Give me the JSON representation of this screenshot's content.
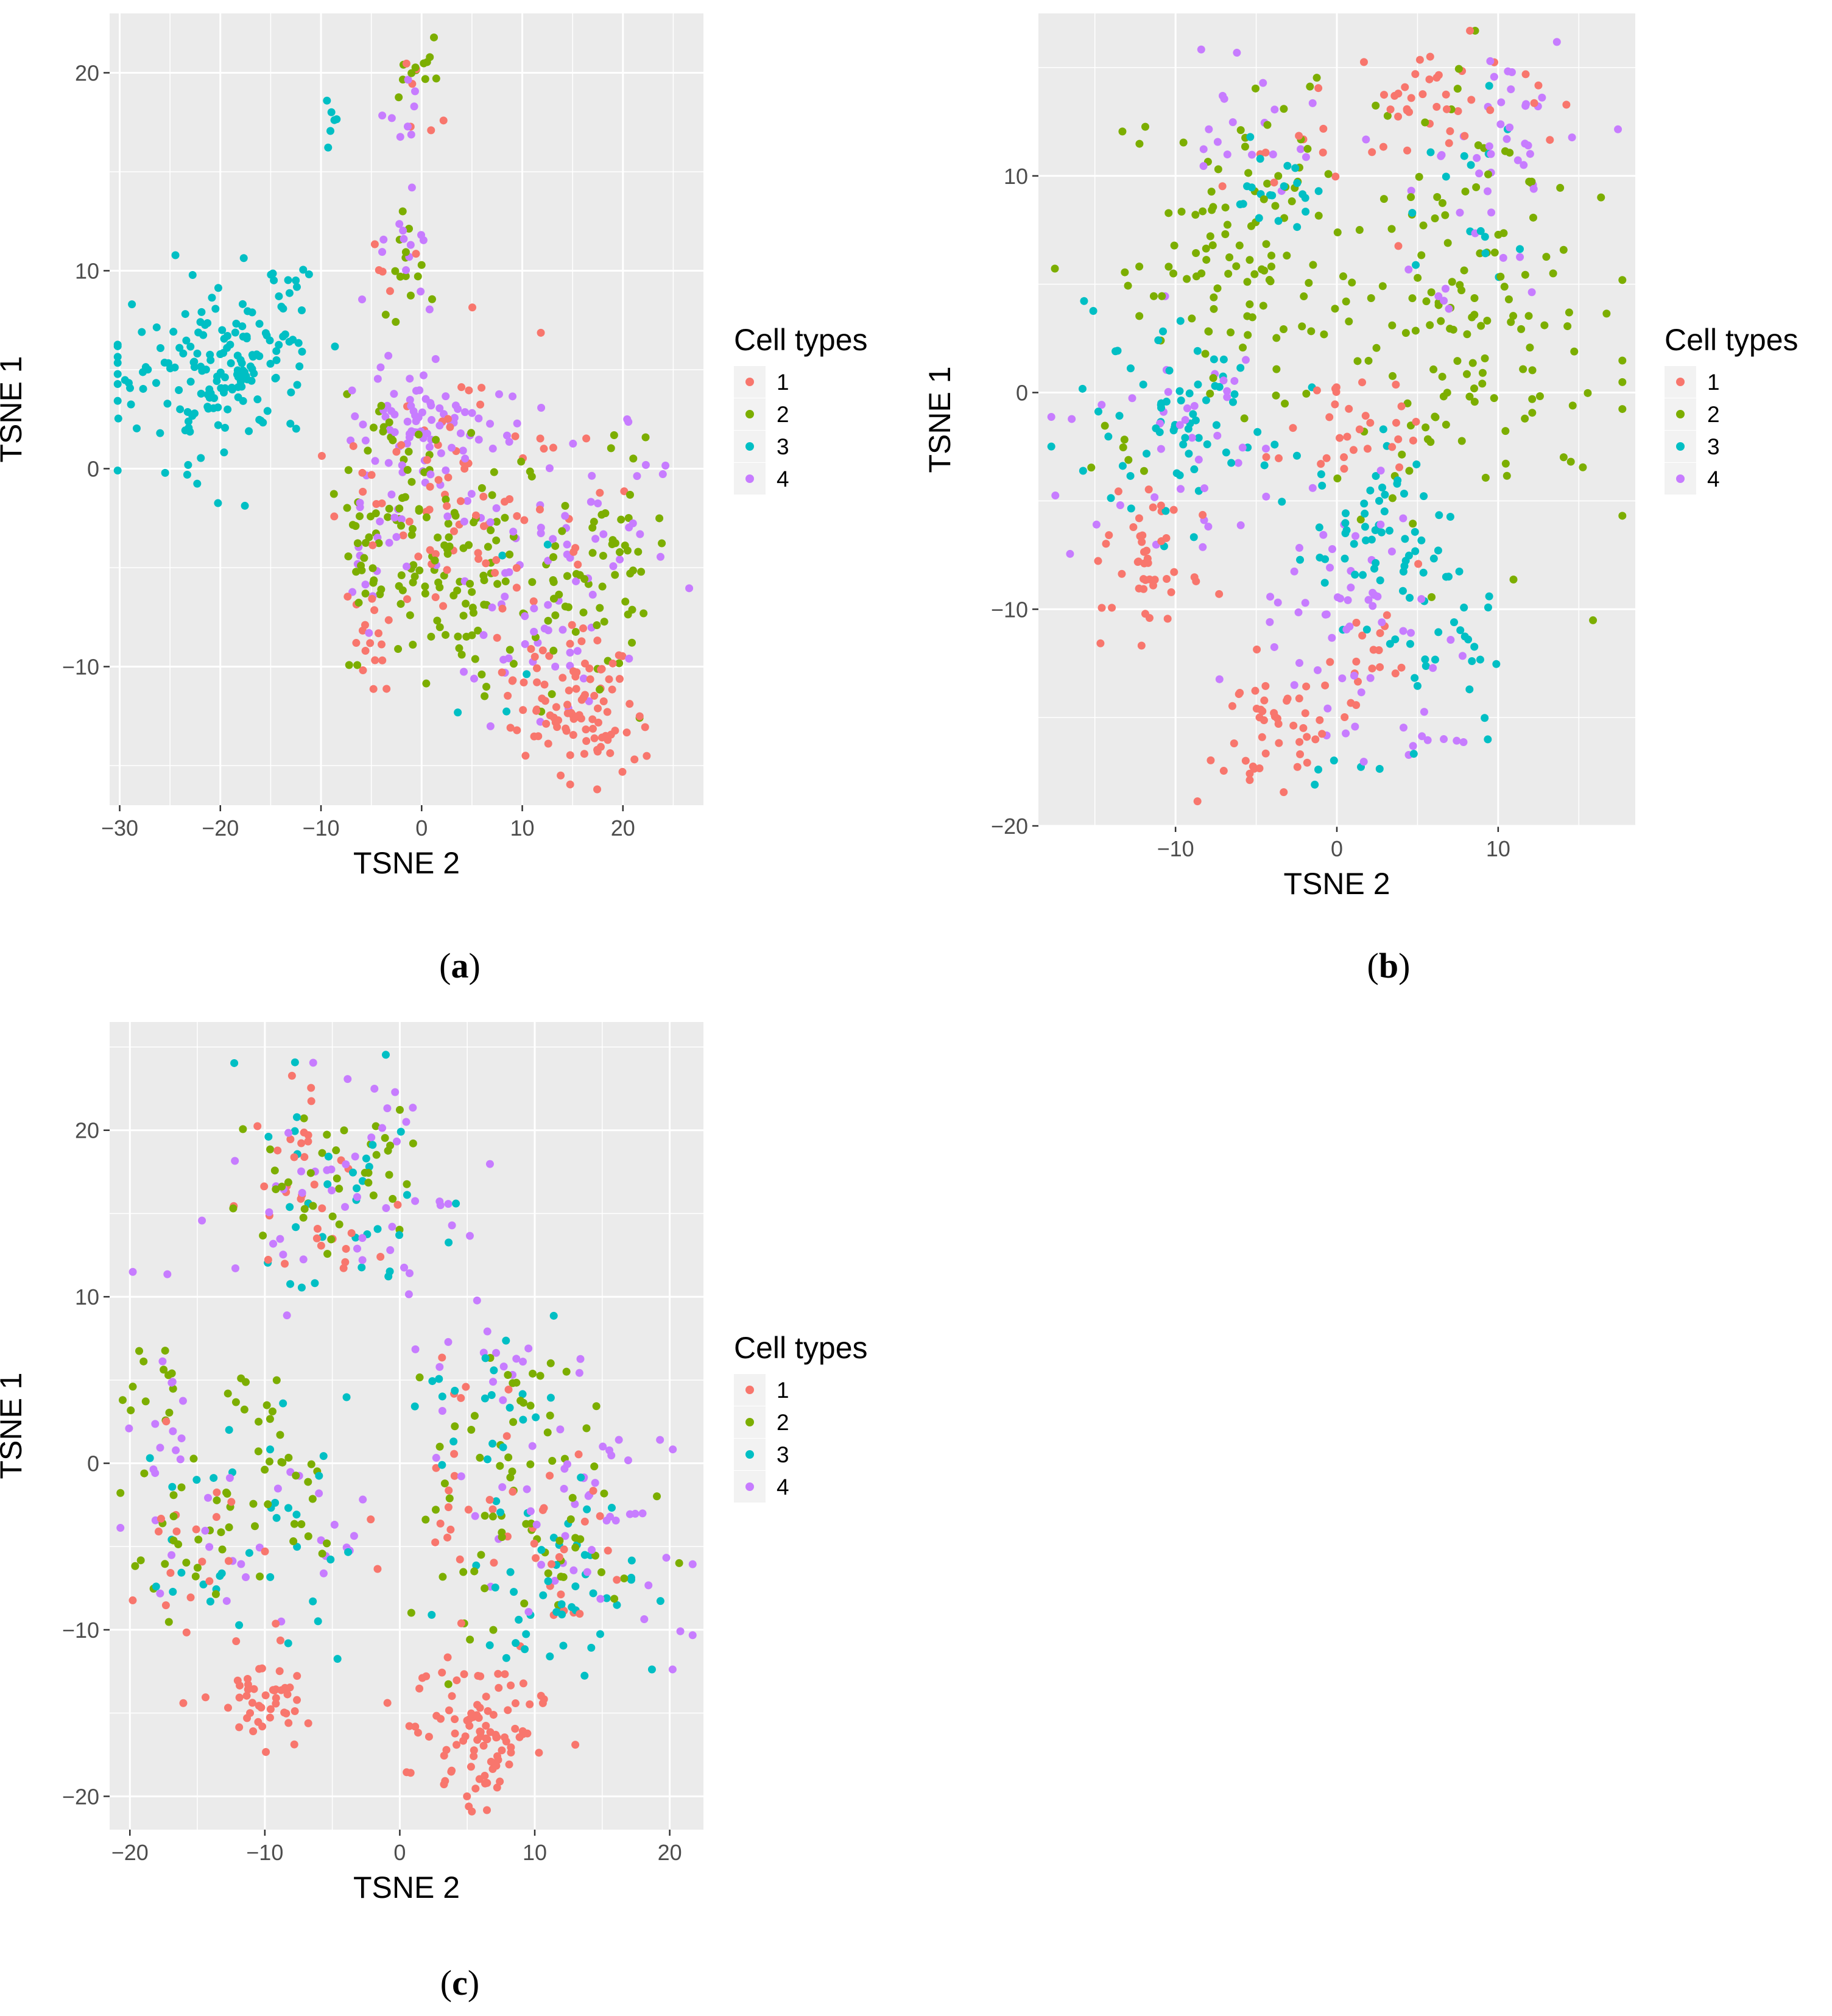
{
  "legend_title": "Cell types",
  "caption_open": "(",
  "caption_close": ")",
  "colors": {
    "1": "#F8766D",
    "2": "#7CAE00",
    "3": "#00BFC4",
    "4": "#C77CFF",
    "panel_bg": "#EBEBEB",
    "grid": "#FFFFFF",
    "axis_text": "#4D4D4D"
  },
  "chart_data": [
    {
      "id": "a",
      "caption": "a",
      "type": "scatter",
      "xlabel": "TSNE 2",
      "ylabel": "TSNE 1",
      "xlim": [
        -31,
        28
      ],
      "ylim": [
        -17,
        23
      ],
      "xticks": [
        -30,
        -20,
        -10,
        0,
        10,
        20
      ],
      "yticks": [
        -10,
        0,
        10,
        20
      ],
      "xtick_labels": [
        "−30",
        "−20",
        "−10",
        "0",
        "10",
        "20"
      ],
      "ytick_labels": [
        "−10",
        "0",
        "10",
        "20"
      ],
      "legend": {
        "title": "Cell types",
        "entries": [
          "1",
          "2",
          "3",
          "4"
        ]
      },
      "seed": 11,
      "series": [
        {
          "name": "1",
          "clusters": [
            {
              "cx": 15,
              "cy": -12,
              "sx": 3,
              "sy": 1.8,
              "n": 95
            },
            {
              "cx": 5,
              "cy": -2,
              "sx": 6,
              "sy": 3.5,
              "n": 85
            },
            {
              "cx": -5,
              "cy": -8,
              "sx": 1.5,
              "sy": 1.5,
              "n": 15
            },
            {
              "cx": 0,
              "cy": 19,
              "sx": 1.5,
              "sy": 1.5,
              "n": 6
            },
            {
              "cx": -3,
              "cy": 10,
              "sx": 1.5,
              "sy": 1,
              "n": 5
            }
          ]
        },
        {
          "name": "2",
          "clusters": [
            {
              "cx": 3,
              "cy": -6,
              "sx": 5,
              "sy": 2.5,
              "n": 110
            },
            {
              "cx": 17,
              "cy": -5,
              "sx": 3.5,
              "sy": 3,
              "n": 55
            },
            {
              "cx": -3,
              "cy": -1,
              "sx": 3,
              "sy": 2.5,
              "n": 45
            },
            {
              "cx": -1,
              "cy": 20,
              "sx": 1.5,
              "sy": 1,
              "n": 12
            },
            {
              "cx": -1,
              "cy": 10,
              "sx": 2,
              "sy": 1.5,
              "n": 14
            }
          ]
        },
        {
          "name": "3",
          "clusters": [
            {
              "cx": -20,
              "cy": 5,
              "sx": 4.5,
              "sy": 2.2,
              "n": 170
            },
            {
              "cx": -14,
              "cy": 9.5,
              "sx": 1.5,
              "sy": 0.7,
              "n": 10
            },
            {
              "cx": -9,
              "cy": 17.5,
              "sx": 0.6,
              "sy": 0.8,
              "n": 6
            },
            {
              "cx": 6,
              "cy": -7,
              "sx": 5,
              "sy": 5,
              "n": 5
            }
          ]
        },
        {
          "name": "4",
          "clusters": [
            {
              "cx": 0,
              "cy": 2,
              "sx": 4,
              "sy": 2,
              "n": 90
            },
            {
              "cx": 12,
              "cy": -5,
              "sx": 6,
              "sy": 4,
              "n": 80
            },
            {
              "cx": -1,
              "cy": 11,
              "sx": 1.5,
              "sy": 1.5,
              "n": 14
            },
            {
              "cx": -3,
              "cy": 18,
              "sx": 1.5,
              "sy": 1,
              "n": 8
            },
            {
              "cx": -6,
              "cy": -5,
              "sx": 1.5,
              "sy": 2,
              "n": 12
            }
          ]
        }
      ]
    },
    {
      "id": "b",
      "caption": "b",
      "type": "scatter",
      "xlabel": "TSNE 2",
      "ylabel": "TSNE 1",
      "xlim": [
        -18.5,
        18.5
      ],
      "ylim": [
        -20,
        17.5
      ],
      "xticks": [
        -10,
        0,
        10
      ],
      "yticks": [
        -20,
        -10,
        0,
        10
      ],
      "xtick_labels": [
        "−10",
        "0",
        "10"
      ],
      "ytick_labels": [
        "−20",
        "−10",
        "0",
        "10"
      ],
      "legend": {
        "title": "Cell types",
        "entries": [
          "1",
          "2",
          "3",
          "4"
        ]
      },
      "seed": 23,
      "series": [
        {
          "name": "1",
          "clusters": [
            {
              "cx": -12,
              "cy": -8,
              "sx": 1.6,
              "sy": 1.6,
              "n": 45
            },
            {
              "cx": -4,
              "cy": -15.5,
              "sx": 1.8,
              "sy": 1.5,
              "n": 45
            },
            {
              "cx": 1.5,
              "cy": -2,
              "sx": 2,
              "sy": 1.2,
              "n": 30
            },
            {
              "cx": 6,
              "cy": 13.5,
              "sx": 3,
              "sy": 1.3,
              "n": 40
            },
            {
              "cx": 2,
              "cy": -12,
              "sx": 1.5,
              "sy": 1.5,
              "n": 20
            },
            {
              "cx": -3,
              "cy": 10,
              "sx": 2,
              "sy": 2,
              "n": 10
            }
          ]
        },
        {
          "name": "2",
          "clusters": [
            {
              "cx": -6,
              "cy": 7,
              "sx": 4,
              "sy": 3,
              "n": 110
            },
            {
              "cx": 8,
              "cy": 3,
              "sx": 4,
              "sy": 4.5,
              "n": 140
            },
            {
              "cx": -14,
              "cy": -3,
              "sx": 1,
              "sy": 1,
              "n": 6
            }
          ]
        },
        {
          "name": "3",
          "clusters": [
            {
              "cx": -10,
              "cy": -1,
              "sx": 3,
              "sy": 2,
              "n": 70
            },
            {
              "cx": 3,
              "cy": -7,
              "sx": 2.5,
              "sy": 2.2,
              "n": 65
            },
            {
              "cx": -4,
              "cy": 10,
              "sx": 2,
              "sy": 1.5,
              "n": 20
            },
            {
              "cx": 7,
              "cy": -12,
              "sx": 2,
              "sy": 1.5,
              "n": 20
            },
            {
              "cx": 8,
              "cy": 8,
              "sx": 2,
              "sy": 2.5,
              "n": 15
            },
            {
              "cx": 1,
              "cy": -17.5,
              "sx": 2,
              "sy": 0.6,
              "n": 6
            }
          ]
        },
        {
          "name": "4",
          "clusters": [
            {
              "cx": -10,
              "cy": -3,
              "sx": 3,
              "sy": 3,
              "n": 40
            },
            {
              "cx": 0,
              "cy": -10,
              "sx": 3,
              "sy": 2.5,
              "n": 50
            },
            {
              "cx": 11,
              "cy": 12,
              "sx": 2.5,
              "sy": 2,
              "n": 30
            },
            {
              "cx": -5,
              "cy": 11,
              "sx": 3,
              "sy": 2,
              "n": 20
            },
            {
              "cx": 6,
              "cy": -15,
              "sx": 2,
              "sy": 1.5,
              "n": 12
            },
            {
              "cx": 7,
              "cy": 6,
              "sx": 3,
              "sy": 3,
              "n": 15
            }
          ]
        }
      ]
    },
    {
      "id": "c",
      "caption": "c",
      "type": "scatter",
      "xlabel": "TSNE 2",
      "ylabel": "TSNE 1",
      "xlim": [
        -21.5,
        22.5
      ],
      "ylim": [
        -22,
        26.5
      ],
      "xticks": [
        -20,
        -10,
        0,
        10,
        20
      ],
      "yticks": [
        -20,
        -10,
        0,
        10,
        20
      ],
      "xtick_labels": [
        "−20",
        "−10",
        "0",
        "10",
        "20"
      ],
      "ytick_labels": [
        "−20",
        "−10",
        "0",
        "10",
        "20"
      ],
      "legend": {
        "title": "Cell types",
        "entries": [
          "1",
          "2",
          "3",
          "4"
        ]
      },
      "seed": 37,
      "series": [
        {
          "name": "1",
          "clusters": [
            {
              "cx": 6,
              "cy": -16,
              "sx": 2.5,
              "sy": 2.5,
              "n": 100
            },
            {
              "cx": -10,
              "cy": -14,
              "sx": 1.5,
              "sy": 1.5,
              "n": 45
            },
            {
              "cx": -7,
              "cy": 16,
              "sx": 2.5,
              "sy": 3,
              "n": 35
            },
            {
              "cx": 10,
              "cy": -4,
              "sx": 5,
              "sy": 3,
              "n": 35
            },
            {
              "cx": -14,
              "cy": -6,
              "sx": 3,
              "sy": 3,
              "n": 20
            },
            {
              "cx": 6,
              "cy": 3,
              "sx": 3,
              "sy": 2,
              "n": 10
            }
          ]
        },
        {
          "name": "2",
          "clusters": [
            {
              "cx": -4,
              "cy": 17,
              "sx": 4,
              "sy": 3,
              "n": 40
            },
            {
              "cx": 8,
              "cy": 4,
              "sx": 4,
              "sy": 2,
              "n": 25
            },
            {
              "cx": 10,
              "cy": -5,
              "sx": 5,
              "sy": 3.5,
              "n": 50
            },
            {
              "cx": -16,
              "cy": -5,
              "sx": 2.5,
              "sy": 3,
              "n": 30
            },
            {
              "cx": -8,
              "cy": -2,
              "sx": 2,
              "sy": 2,
              "n": 20
            },
            {
              "cx": -10,
              "cy": 4,
              "sx": 1.2,
              "sy": 1,
              "n": 10
            },
            {
              "cx": -18,
              "cy": 4,
              "sx": 1.5,
              "sy": 2,
              "n": 12
            }
          ]
        },
        {
          "name": "3",
          "clusters": [
            {
              "cx": -5,
              "cy": 16,
              "sx": 4,
              "sy": 4,
              "n": 35
            },
            {
              "cx": 12,
              "cy": -7,
              "sx": 4,
              "sy": 3.5,
              "n": 50
            },
            {
              "cx": 8,
              "cy": 4,
              "sx": 4,
              "sy": 2.5,
              "n": 20
            },
            {
              "cx": -8,
              "cy": -3,
              "sx": 2.5,
              "sy": 3,
              "n": 20
            },
            {
              "cx": -15,
              "cy": -5,
              "sx": 3,
              "sy": 3,
              "n": 15
            }
          ]
        },
        {
          "name": "4",
          "clusters": [
            {
              "cx": -3,
              "cy": 16,
              "sx": 4.5,
              "sy": 4,
              "n": 50
            },
            {
              "cx": 12,
              "cy": -3,
              "sx": 5,
              "sy": 3.5,
              "n": 50
            },
            {
              "cx": 8,
              "cy": 5,
              "sx": 4,
              "sy": 2,
              "n": 15
            },
            {
              "cx": -16,
              "cy": 0,
              "sx": 3,
              "sy": 4,
              "n": 25
            },
            {
              "cx": -7,
              "cy": -3,
              "sx": 2.5,
              "sy": 2.5,
              "n": 15
            }
          ]
        }
      ]
    }
  ]
}
